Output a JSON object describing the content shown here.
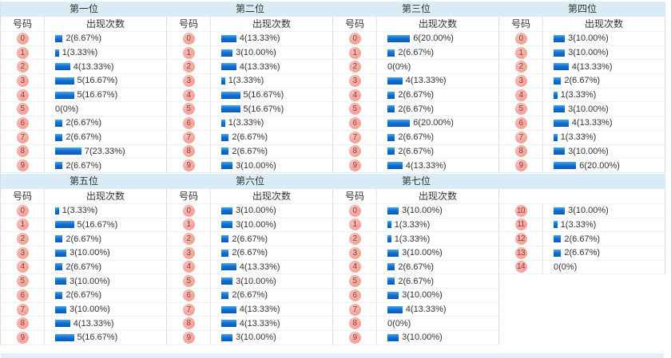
{
  "colors": {
    "band_bg": "#d9ebf7",
    "next_band_bg": "#e3eff8",
    "border": "#cfe0ee",
    "vline": "#d9e5f0",
    "hline": "#e9f2f9",
    "badge_bg": "#f3a69e",
    "badge_text": "#9e352c",
    "bar_bottom": "#0a58bb",
    "text": "#333333"
  },
  "column_headers": {
    "number": "号码",
    "frequency": "出现次数"
  },
  "tables": [
    {
      "title": "第一位",
      "show_headers": true,
      "rows": [
        {
          "n": "0",
          "c": 2,
          "t": "2(6.67%)"
        },
        {
          "n": "1",
          "c": 1,
          "t": "1(3.33%)"
        },
        {
          "n": "2",
          "c": 4,
          "t": "4(13.33%)"
        },
        {
          "n": "3",
          "c": 5,
          "t": "5(16.67%)"
        },
        {
          "n": "4",
          "c": 5,
          "t": "5(16.67%)"
        },
        {
          "n": "5",
          "c": 0,
          "t": "0(0%)"
        },
        {
          "n": "6",
          "c": 2,
          "t": "2(6.67%)"
        },
        {
          "n": "7",
          "c": 2,
          "t": "2(6.67%)"
        },
        {
          "n": "8",
          "c": 7,
          "t": "7(23.33%)"
        },
        {
          "n": "9",
          "c": 2,
          "t": "2(6.67%)"
        }
      ]
    },
    {
      "title": "第二位",
      "show_headers": true,
      "rows": [
        {
          "n": "0",
          "c": 4,
          "t": "4(13.33%)"
        },
        {
          "n": "1",
          "c": 3,
          "t": "3(10.00%)"
        },
        {
          "n": "2",
          "c": 4,
          "t": "4(13.33%)"
        },
        {
          "n": "3",
          "c": 1,
          "t": "1(3.33%)"
        },
        {
          "n": "4",
          "c": 5,
          "t": "5(16.67%)"
        },
        {
          "n": "5",
          "c": 5,
          "t": "5(16.67%)"
        },
        {
          "n": "6",
          "c": 1,
          "t": "1(3.33%)"
        },
        {
          "n": "7",
          "c": 2,
          "t": "2(6.67%)"
        },
        {
          "n": "8",
          "c": 2,
          "t": "2(6.67%)"
        },
        {
          "n": "9",
          "c": 3,
          "t": "3(10.00%)"
        }
      ]
    },
    {
      "title": "第三位",
      "show_headers": true,
      "rows": [
        {
          "n": "0",
          "c": 6,
          "t": "6(20.00%)"
        },
        {
          "n": "1",
          "c": 2,
          "t": "2(6.67%)"
        },
        {
          "n": "2",
          "c": 0,
          "t": "0(0%)"
        },
        {
          "n": "3",
          "c": 4,
          "t": "4(13.33%)"
        },
        {
          "n": "4",
          "c": 2,
          "t": "2(6.67%)"
        },
        {
          "n": "5",
          "c": 2,
          "t": "2(6.67%)"
        },
        {
          "n": "6",
          "c": 6,
          "t": "6(20.00%)"
        },
        {
          "n": "7",
          "c": 2,
          "t": "2(6.67%)"
        },
        {
          "n": "8",
          "c": 2,
          "t": "2(6.67%)"
        },
        {
          "n": "9",
          "c": 4,
          "t": "4(13.33%)"
        }
      ]
    },
    {
      "title": "第四位",
      "show_headers": true,
      "rows": [
        {
          "n": "0",
          "c": 3,
          "t": "3(10.00%)"
        },
        {
          "n": "1",
          "c": 3,
          "t": "3(10.00%)"
        },
        {
          "n": "2",
          "c": 4,
          "t": "4(13.33%)"
        },
        {
          "n": "3",
          "c": 2,
          "t": "2(6.67%)"
        },
        {
          "n": "4",
          "c": 1,
          "t": "1(3.33%)"
        },
        {
          "n": "5",
          "c": 3,
          "t": "3(10.00%)"
        },
        {
          "n": "6",
          "c": 4,
          "t": "4(13.33%)"
        },
        {
          "n": "7",
          "c": 1,
          "t": "1(3.33%)"
        },
        {
          "n": "8",
          "c": 3,
          "t": "3(10.00%)"
        },
        {
          "n": "9",
          "c": 6,
          "t": "6(20.00%)"
        }
      ]
    },
    {
      "title": "第五位",
      "show_headers": true,
      "rows": [
        {
          "n": "0",
          "c": 1,
          "t": "1(3.33%)"
        },
        {
          "n": "1",
          "c": 5,
          "t": "5(16.67%)"
        },
        {
          "n": "2",
          "c": 2,
          "t": "2(6.67%)"
        },
        {
          "n": "3",
          "c": 3,
          "t": "3(10.00%)"
        },
        {
          "n": "4",
          "c": 2,
          "t": "2(6.67%)"
        },
        {
          "n": "5",
          "c": 3,
          "t": "3(10.00%)"
        },
        {
          "n": "6",
          "c": 2,
          "t": "2(6.67%)"
        },
        {
          "n": "7",
          "c": 3,
          "t": "3(10.00%)"
        },
        {
          "n": "8",
          "c": 4,
          "t": "4(13.33%)"
        },
        {
          "n": "9",
          "c": 5,
          "t": "5(16.67%)"
        }
      ]
    },
    {
      "title": "第六位",
      "show_headers": true,
      "rows": [
        {
          "n": "0",
          "c": 3,
          "t": "3(10.00%)"
        },
        {
          "n": "1",
          "c": 3,
          "t": "3(10.00%)"
        },
        {
          "n": "2",
          "c": 2,
          "t": "2(6.67%)"
        },
        {
          "n": "3",
          "c": 2,
          "t": "2(6.67%)"
        },
        {
          "n": "4",
          "c": 4,
          "t": "4(13.33%)"
        },
        {
          "n": "5",
          "c": 3,
          "t": "3(10.00%)"
        },
        {
          "n": "6",
          "c": 2,
          "t": "2(6.67%)"
        },
        {
          "n": "7",
          "c": 4,
          "t": "4(13.33%)"
        },
        {
          "n": "8",
          "c": 4,
          "t": "4(13.33%)"
        },
        {
          "n": "9",
          "c": 3,
          "t": "3(10.00%)"
        }
      ]
    },
    {
      "title": "第七位",
      "show_headers": true,
      "rows": [
        {
          "n": "0",
          "c": 3,
          "t": "3(10.00%)"
        },
        {
          "n": "1",
          "c": 1,
          "t": "1(3.33%)"
        },
        {
          "n": "2",
          "c": 1,
          "t": "1(3.33%)"
        },
        {
          "n": "3",
          "c": 3,
          "t": "3(10.00%)"
        },
        {
          "n": "4",
          "c": 2,
          "t": "2(6.67%)"
        },
        {
          "n": "5",
          "c": 2,
          "t": "2(6.67%)"
        },
        {
          "n": "6",
          "c": 3,
          "t": "3(10.00%)"
        },
        {
          "n": "7",
          "c": 4,
          "t": "4(13.33%)"
        },
        {
          "n": "8",
          "c": 0,
          "t": "0(0%)"
        },
        {
          "n": "9",
          "c": 3,
          "t": "3(10.00%)"
        }
      ]
    },
    {
      "title": "",
      "show_headers": false,
      "rows": [
        {
          "n": "10",
          "c": 3,
          "t": "3(10.00%)"
        },
        {
          "n": "11",
          "c": 1,
          "t": "1(3.33%)"
        },
        {
          "n": "12",
          "c": 2,
          "t": "2(6.67%)"
        },
        {
          "n": "13",
          "c": 2,
          "t": "2(6.67%)"
        },
        {
          "n": "14",
          "c": 0,
          "t": "0(0%)"
        }
      ]
    }
  ]
}
